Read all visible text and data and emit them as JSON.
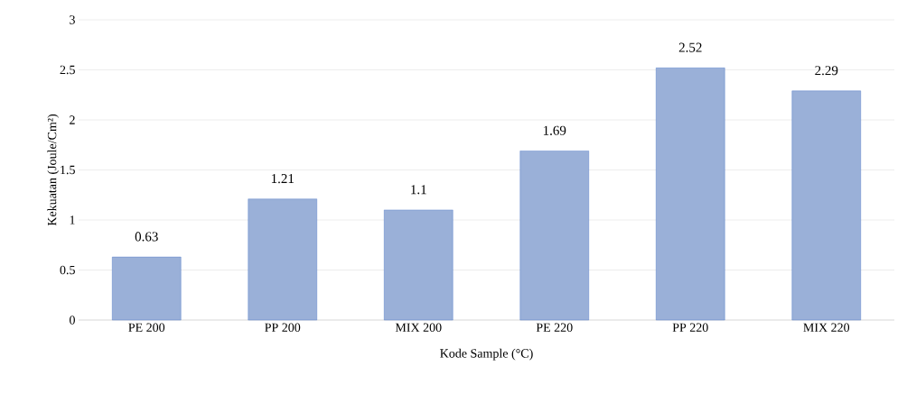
{
  "chart_data": {
    "type": "bar",
    "xlabel": "Kode Sample (°C)",
    "ylabel": "Kekuatan (Joule/Cm²)",
    "categories": [
      "PE 200",
      "PP 200",
      "MIX 200",
      "PE 220",
      "PP 220",
      "MIX 220"
    ],
    "values": [
      0.63,
      1.21,
      1.1,
      1.69,
      2.52,
      2.29
    ],
    "color": "#9ab0d8",
    "ylim": [
      0,
      3
    ],
    "yticks": [
      0,
      0.5,
      1,
      1.5,
      2,
      2.5,
      3
    ],
    "grid": "y",
    "data_labels": true
  }
}
